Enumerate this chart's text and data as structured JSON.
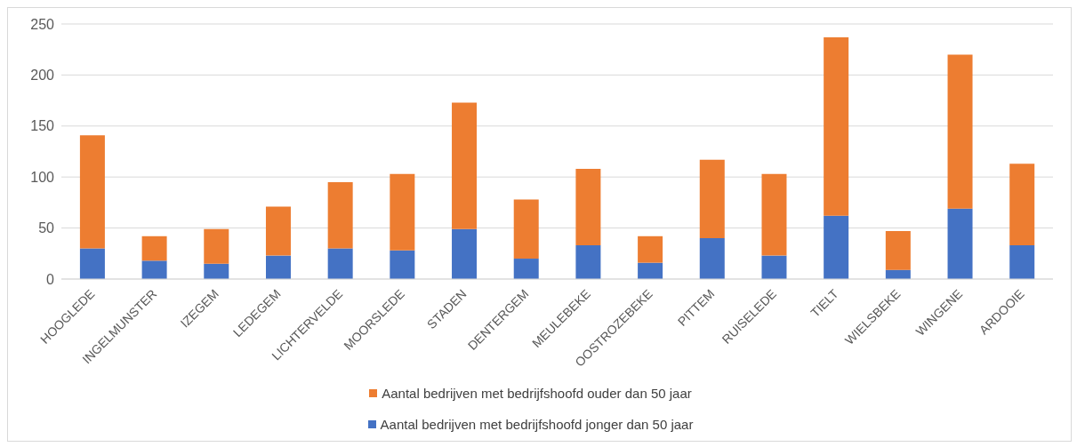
{
  "chart_data": {
    "type": "bar",
    "stacked": true,
    "categories": [
      "HOOGLEDE",
      "INGELMUNSTER",
      "IZEGEM",
      "LEDEGEM",
      "LICHTERVELDE",
      "MOORSLEDE",
      "STADEN",
      "DENTERGEM",
      "MEULEBEKE",
      "OOSTROZEBEKE",
      "PITTEM",
      "RUISELEDE",
      "TIELT",
      "WIELSBEKE",
      "WINGENE",
      "ARDOOIE"
    ],
    "series": [
      {
        "name": "Aantal bedrijven met bedrijfshoofd jonger dan 50 jaar",
        "color": "#4472c4",
        "values": [
          30,
          18,
          15,
          23,
          30,
          28,
          49,
          20,
          33,
          16,
          40,
          23,
          62,
          9,
          69,
          33
        ]
      },
      {
        "name": "Aantal bedrijven met bedrijfshoofd ouder dan 50 jaar",
        "color": "#ed7d31",
        "values": [
          111,
          24,
          34,
          48,
          65,
          75,
          124,
          58,
          75,
          26,
          77,
          80,
          175,
          38,
          151,
          80
        ]
      }
    ],
    "ylim": [
      0,
      250
    ],
    "yticks": [
      0,
      50,
      100,
      150,
      200,
      250
    ],
    "grid": "y",
    "legend": "bottom"
  }
}
